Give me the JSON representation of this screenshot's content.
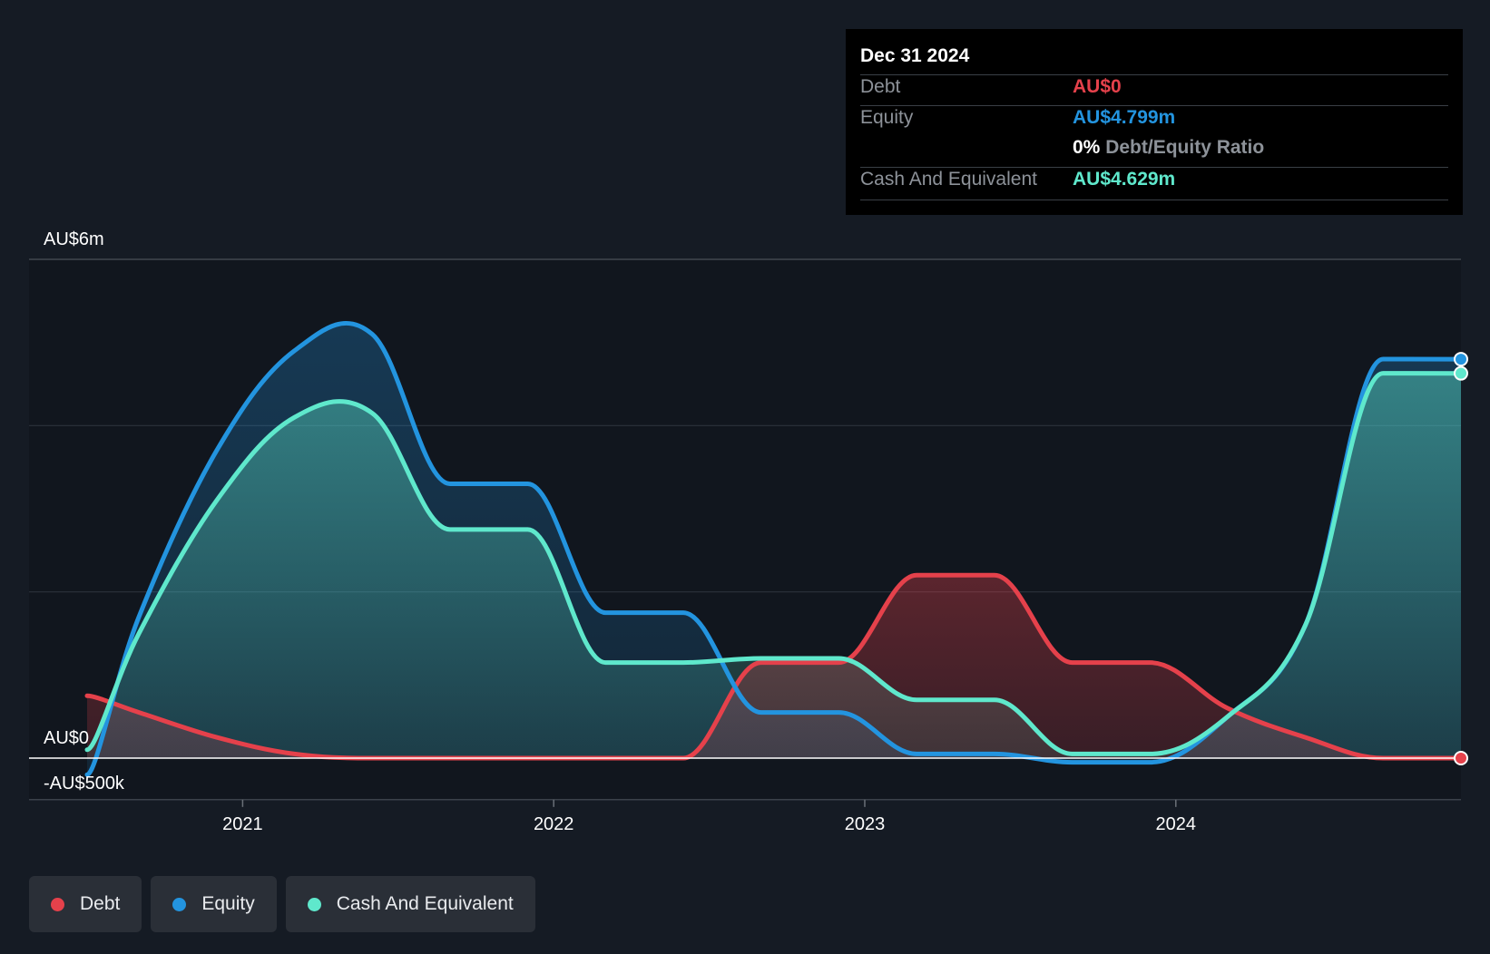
{
  "chart_data": {
    "type": "area",
    "x": [
      "2020-07",
      "2020-09",
      "2020-12",
      "2021-03",
      "2021-06",
      "2021-09",
      "2021-12",
      "2022-03",
      "2022-06",
      "2022-09",
      "2022-12",
      "2023-03",
      "2023-06",
      "2023-09",
      "2023-12",
      "2024-03",
      "2024-06",
      "2024-09",
      "2024-12"
    ],
    "series": [
      {
        "name": "Debt",
        "color": "#e5414b",
        "values": [
          0.75,
          0.55,
          0.25,
          0.05,
          0.0,
          0.0,
          0.0,
          0.0,
          0.0,
          1.15,
          1.15,
          2.2,
          2.2,
          1.15,
          1.15,
          0.6,
          0.25,
          0.0,
          0.0
        ]
      },
      {
        "name": "Equity",
        "color": "#2394df",
        "values": [
          -0.2,
          1.7,
          3.7,
          4.9,
          5.1,
          3.3,
          3.3,
          1.75,
          1.75,
          0.55,
          0.55,
          0.05,
          0.05,
          -0.05,
          -0.05,
          0.5,
          1.6,
          4.8,
          4.799
        ]
      },
      {
        "name": "Cash And Equivalent",
        "color": "#5fe8cc",
        "values": [
          0.1,
          1.5,
          3.1,
          4.1,
          4.15,
          2.75,
          2.75,
          1.15,
          1.15,
          1.2,
          1.2,
          0.7,
          0.7,
          0.05,
          0.05,
          0.5,
          1.6,
          4.63,
          4.629
        ]
      }
    ],
    "y_ticks": [
      "AU$6m",
      "AU$0",
      "-AU$500k"
    ],
    "x_ticks": [
      "2021",
      "2022",
      "2023",
      "2024"
    ],
    "ylim": [
      -0.5,
      6
    ],
    "grid": true,
    "legend_position": "bottom-left"
  },
  "tooltip": {
    "date": "Dec 31 2024",
    "rows": [
      {
        "label": "Debt",
        "value": "AU$0",
        "color": "#e5414b"
      },
      {
        "label": "Equity",
        "value": "AU$4.799m",
        "color": "#2394df"
      },
      {
        "ratio_pct": "0%",
        "ratio_label": "Debt/Equity Ratio"
      },
      {
        "label": "Cash And Equivalent",
        "value": "AU$4.629m",
        "color": "#5fe8cc"
      }
    ]
  },
  "legend": [
    {
      "label": "Debt",
      "color": "#e5414b"
    },
    {
      "label": "Equity",
      "color": "#2394df"
    },
    {
      "label": "Cash And Equivalent",
      "color": "#5fe8cc"
    }
  ]
}
